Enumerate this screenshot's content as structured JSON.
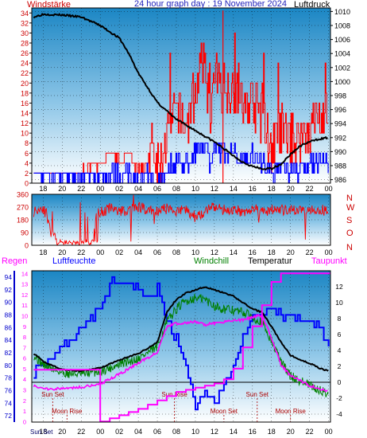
{
  "panel1": {
    "title": "24 hour graph day : 19 November 2024",
    "left_label": "Windstärke",
    "right_label": "Luftdruck",
    "y_left_ticks": [
      "0",
      "2",
      "4",
      "6",
      "8",
      "10",
      "12",
      "14",
      "16",
      "18",
      "20",
      "22",
      "24",
      "26",
      "28",
      "30",
      "32",
      "34"
    ],
    "y_right_ticks": [
      "986",
      "988",
      "990",
      "992",
      "994",
      "996",
      "998",
      "1000",
      "1002",
      "1004",
      "1006",
      "1008",
      "1010"
    ],
    "x_ticks": [
      "18",
      "20",
      "22",
      "00",
      "02",
      "04",
      "06",
      "08",
      "10",
      "12",
      "14",
      "16",
      "18",
      "20",
      "22",
      "00"
    ]
  },
  "panel2": {
    "y_ticks": [
      "0",
      "90",
      "180",
      "270",
      "360"
    ],
    "direction_labels": [
      "N",
      "W",
      "S",
      "O",
      "N"
    ],
    "x_ticks": [
      "18",
      "20",
      "22",
      "00",
      "02",
      "04",
      "06",
      "08",
      "10",
      "12",
      "14",
      "16",
      "18",
      "20",
      "22",
      "00"
    ]
  },
  "panel3": {
    "legend": {
      "rain": "Regen",
      "humidity": "Luftfeuchte",
      "windchill": "Windchill",
      "temperature": "Temperatur",
      "dewpoint": "Taupunkt"
    },
    "y_rain_ticks": [
      "0",
      "1",
      "2",
      "3",
      "4",
      "5",
      "6",
      "7",
      "8",
      "9",
      "10",
      "11",
      "12",
      "13",
      "14"
    ],
    "y_humidity_ticks": [
      "72",
      "74",
      "76",
      "78",
      "80",
      "82",
      "84",
      "86",
      "88",
      "90",
      "92",
      "94"
    ],
    "y_temp_ticks": [
      "-4",
      "-2",
      "0",
      "2",
      "4",
      "6",
      "8",
      "10",
      "12"
    ],
    "x_ticks": [
      "18",
      "20",
      "22",
      "00",
      "02",
      "04",
      "06",
      "08",
      "10",
      "12",
      "14",
      "16",
      "18",
      "20",
      "22",
      "00"
    ],
    "x_first_label": "Sun Set",
    "events": [
      {
        "label": "Sun Set",
        "x": 19.0,
        "row": "upper"
      },
      {
        "label": "Moon Rise",
        "x": 20.5,
        "row": "lower"
      },
      {
        "label": "Sun Rise",
        "x": 31.8,
        "row": "upper"
      },
      {
        "label": "Moon Set",
        "x": 37.0,
        "row": "lower"
      },
      {
        "label": "Sun Set",
        "x": 40.5,
        "row": "upper"
      },
      {
        "label": "Moon Rise",
        "x": 44.0,
        "row": "lower"
      }
    ]
  },
  "colors": {
    "wind": "#ff0000",
    "gust_blue": "#0000ff",
    "pressure": "#000000",
    "humidity": "#0000ff",
    "windchill": "#008000",
    "temperature": "#000000",
    "dewpoint": "#ff00ff",
    "axis_left": "#cc0000",
    "axis_right": "#000000"
  },
  "chart_data": [
    {
      "type": "line",
      "title": "24 hour graph day : 19 November 2024",
      "x_unit": "hour (17 = 17:00 18 Nov, 48 = 00:00 20 Nov)",
      "xlim": [
        16.8,
        48.2
      ],
      "ylabel": "Windstärke",
      "ylim": [
        0,
        35
      ],
      "y2label": "Luftdruck",
      "y2lim": [
        985.5,
        1010.5
      ],
      "series": [
        {
          "name": "Windstärke",
          "axis": "left",
          "x": [
            17,
            19,
            21,
            22,
            24,
            25,
            26,
            27,
            28,
            29,
            30,
            31,
            32,
            33,
            34,
            35,
            35.5,
            36,
            37,
            38,
            39,
            40,
            41,
            42,
            43,
            44,
            45,
            46,
            47,
            48
          ],
          "values": [
            2,
            2,
            2,
            2,
            4,
            6,
            4,
            6,
            2,
            4,
            2,
            8,
            14,
            10,
            18,
            24,
            12,
            20,
            18,
            18,
            14,
            16,
            12,
            6,
            10,
            8,
            8,
            10,
            12,
            12
          ]
        },
        {
          "name": "Luftdruck",
          "axis": "right",
          "x": [
            17,
            18,
            20,
            22,
            24,
            26,
            27,
            28,
            29,
            30,
            31,
            32,
            33,
            34,
            35,
            36,
            37,
            38,
            39,
            40,
            41,
            42,
            43,
            44,
            45,
            46,
            47,
            48
          ],
          "values": [
            1009.2,
            1009.6,
            1009.5,
            1009.2,
            1008.0,
            1006.2,
            1004.0,
            1001.2,
            999.1,
            997.0,
            995.8,
            994.6,
            993.8,
            993.0,
            992.2,
            991.4,
            990.4,
            989.4,
            988.5,
            987.9,
            987.5,
            987.6,
            988.2,
            989.6,
            990.8,
            991.4,
            991.8,
            992.0
          ]
        }
      ]
    },
    {
      "type": "scatter",
      "ylabel": "",
      "ylim": [
        0,
        360
      ],
      "xlim": [
        16.8,
        48.2
      ],
      "series": [
        {
          "name": "",
          "x": [
            17,
            18,
            19,
            20,
            21,
            22,
            23,
            24,
            25,
            26,
            27,
            28,
            29,
            30,
            31,
            32,
            33,
            34,
            35,
            36,
            37,
            38,
            39,
            40,
            41,
            42,
            43,
            44,
            45,
            46,
            47,
            48
          ],
          "values": [
            240,
            270,
            60,
            20,
            200,
            10,
            0,
            230,
            260,
            240,
            250,
            270,
            250,
            240,
            260,
            240,
            250,
            200,
            240,
            270,
            250,
            250,
            240,
            250,
            240,
            250,
            250,
            240,
            250,
            260,
            250,
            240
          ]
        }
      ]
    },
    {
      "type": "line",
      "xlim": [
        16.8,
        48.2
      ],
      "ylabel": "Luftfeuchte",
      "ylim": [
        71,
        95
      ],
      "y2label": "",
      "y2lim": [
        -5,
        14
      ],
      "series": [
        {
          "name": "Luftfeuchte",
          "axis": "humidity",
          "x": [
            17,
            18,
            20,
            22,
            24,
            25,
            26,
            27,
            28,
            29,
            30,
            31,
            32,
            33,
            34,
            35,
            36,
            37,
            38,
            39,
            40,
            41,
            42,
            43,
            44,
            45,
            46,
            47,
            48
          ],
          "values": [
            79,
            80,
            83,
            86,
            89,
            93,
            93,
            93,
            92,
            91,
            92,
            87,
            84,
            80,
            73,
            76,
            74,
            77,
            80,
            84,
            88,
            88,
            89,
            88,
            88,
            87,
            87,
            86,
            83
          ]
        },
        {
          "name": "Temperatur",
          "axis": "temp",
          "x": [
            17,
            18,
            20,
            22,
            24,
            26,
            28,
            30,
            31,
            32,
            33,
            34,
            35,
            36,
            37,
            38,
            39,
            40,
            41,
            42,
            43,
            44,
            45,
            46,
            47,
            48
          ],
          "values": [
            3.6,
            2.6,
            1.6,
            1.4,
            1.8,
            2.8,
            3.6,
            5.0,
            8.8,
            10.4,
            11.2,
            11.6,
            12.0,
            11.6,
            11.2,
            10.8,
            10.0,
            9.2,
            8.8,
            7.0,
            5.0,
            3.4,
            2.8,
            2.4,
            1.8,
            1.4
          ]
        },
        {
          "name": "Windchill",
          "axis": "temp",
          "x": [
            17,
            18,
            20,
            22,
            24,
            26,
            28,
            30,
            31,
            32,
            33,
            34,
            35,
            36,
            37,
            38,
            39,
            40,
            41,
            42,
            43,
            44,
            45,
            46,
            47,
            48
          ],
          "values": [
            3.4,
            2.2,
            1.2,
            1.0,
            1.4,
            2.2,
            3.0,
            4.4,
            7.6,
            9.2,
            10.2,
            10.6,
            10.4,
            9.6,
            9.2,
            9.0,
            8.8,
            8.2,
            7.6,
            5.2,
            2.6,
            0.8,
            0.2,
            -0.4,
            -1.0,
            -1.4
          ]
        },
        {
          "name": "Taupunkt",
          "axis": "temp",
          "x": [
            17,
            18,
            20,
            22,
            24,
            26,
            28,
            30,
            31,
            32,
            33,
            34,
            35,
            36,
            37,
            38,
            39,
            40,
            41,
            42,
            43,
            44,
            45,
            46,
            47,
            48
          ],
          "values": [
            -0.4,
            -0.8,
            -0.8,
            -0.6,
            -0.2,
            1.0,
            2.4,
            3.8,
            7.0,
            7.4,
            7.4,
            7.6,
            7.2,
            7.4,
            7.6,
            7.8,
            7.8,
            8.2,
            8.4,
            5.6,
            2.2,
            0.8,
            0.2,
            -0.4,
            -0.8,
            -1.2
          ]
        },
        {
          "name": "Regen",
          "axis": "rain",
          "x": [
            17,
            23.9,
            24,
            25,
            26,
            27,
            28,
            29,
            30,
            31,
            32,
            33,
            34,
            35,
            36,
            37,
            38,
            39,
            40,
            41,
            42,
            43,
            44,
            45,
            48
          ],
          "values": [
            4.9,
            4.9,
            0,
            0.3,
            0.6,
            0.9,
            1.2,
            1.6,
            2.0,
            2.4,
            2.8,
            3.0,
            3.2,
            3.4,
            3.6,
            4.0,
            5.0,
            7.0,
            9.0,
            11.0,
            13.2,
            14.0,
            14.0,
            14.0,
            14.0
          ]
        }
      ]
    }
  ]
}
